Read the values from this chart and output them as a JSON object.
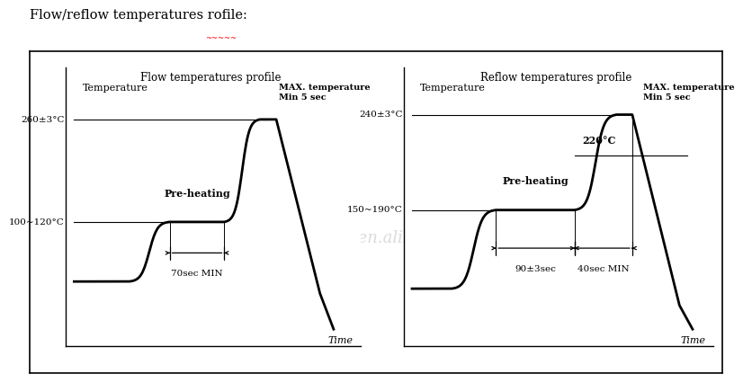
{
  "title": "Flow/reflow temperatures rofile:",
  "background_color": "#ffffff",
  "watermark": "chinasanji.en.alibaba.com",
  "left_chart": {
    "title": "Flow temperatures profile",
    "ylabel": "Temperature",
    "xlabel": "Time",
    "label_260": "260±3°C",
    "label_100_120": "100~120°C",
    "label_preheating": "Pre-heating",
    "label_70sec": "70sec MIN",
    "label_max": "MAX. temperature\nMin 5 sec"
  },
  "right_chart": {
    "title": "Reflow temperatures profile",
    "ylabel": "Temperature",
    "xlabel": "Time",
    "label_240": "240±3°C",
    "label_150_190": "150~190°C",
    "label_220": "220°C",
    "label_preheating": "Pre-heating",
    "label_90sec": "90±3sec",
    "label_40sec": "40sec MIN",
    "label_max": "MAX. temperature\nMin 5 sec"
  }
}
